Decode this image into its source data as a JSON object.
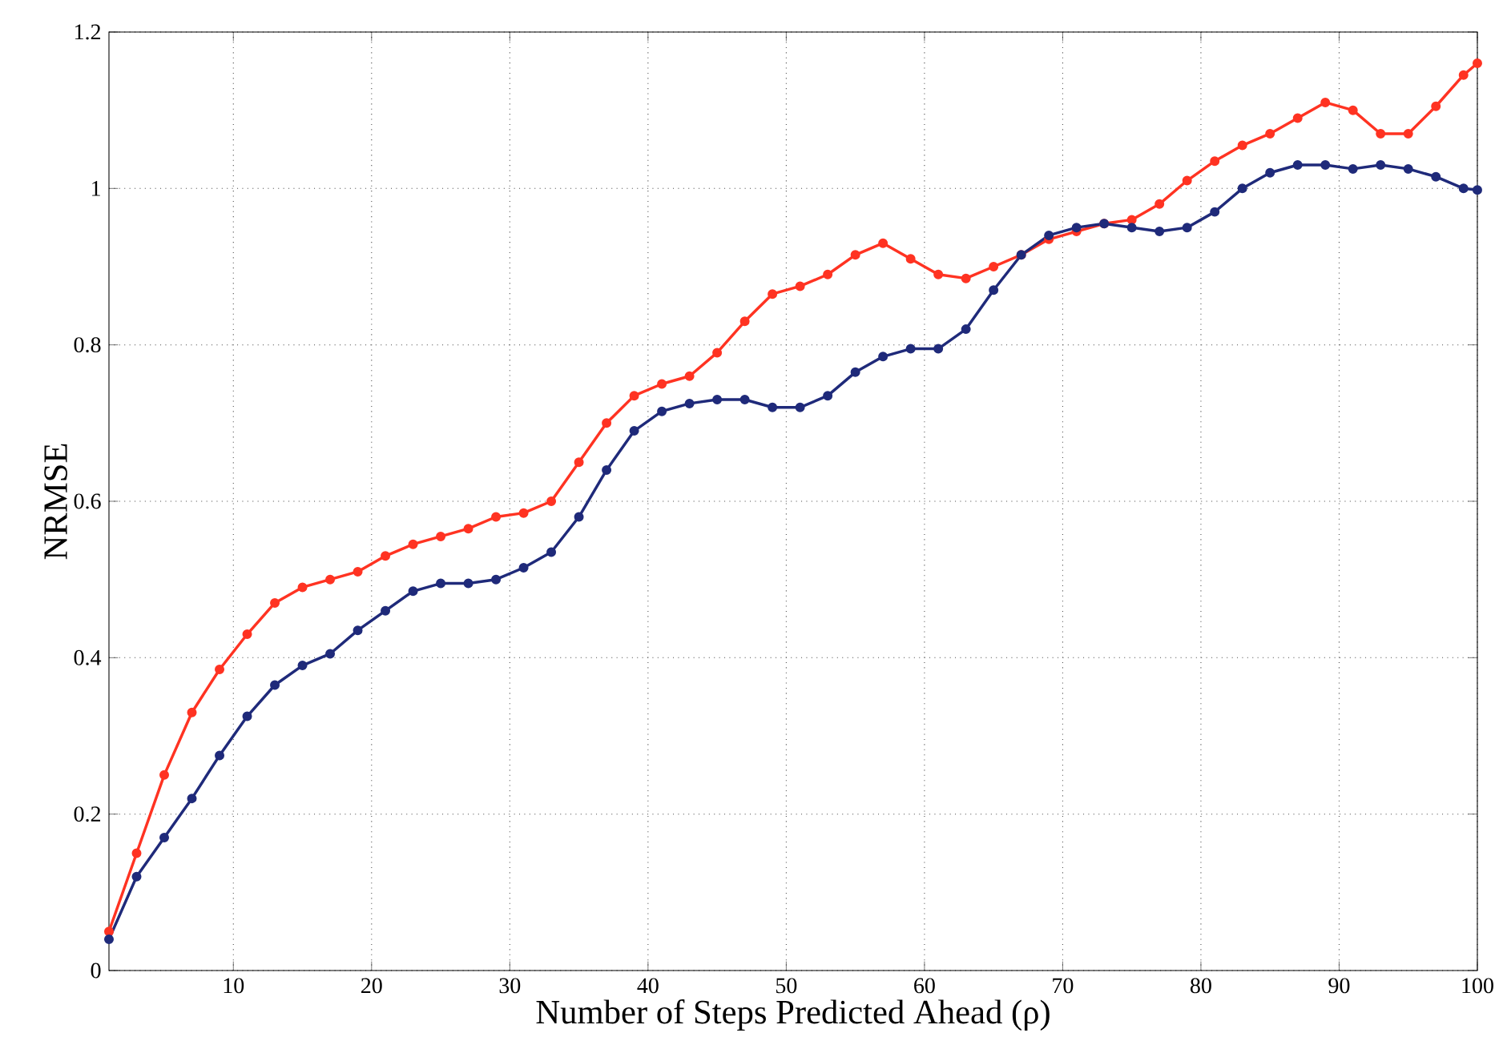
{
  "chart_data": {
    "type": "line",
    "xlabel": "Number of Steps Predicted Ahead (ρ)",
    "ylabel": "NRMSE",
    "xlim": [
      1,
      100
    ],
    "ylim": [
      0,
      1.2
    ],
    "xticks": [
      10,
      20,
      30,
      40,
      50,
      60,
      70,
      80,
      90,
      100
    ],
    "yticks": [
      0,
      0.2,
      0.4,
      0.6,
      0.8,
      1,
      1.2
    ],
    "grid": true,
    "marker": "circle",
    "line_style": "solid",
    "series": [
      {
        "color": "#ff3322",
        "x": [
          1,
          3,
          5,
          7,
          9,
          11,
          13,
          15,
          17,
          19,
          21,
          23,
          25,
          27,
          29,
          31,
          33,
          35,
          37,
          39,
          41,
          43,
          45,
          47,
          49,
          51,
          53,
          55,
          57,
          59,
          61,
          63,
          65,
          67,
          69,
          71,
          73,
          75,
          77,
          79,
          81,
          83,
          85,
          87,
          89,
          91,
          93,
          95,
          97,
          99,
          100
        ],
        "values": [
          0.05,
          0.15,
          0.25,
          0.33,
          0.385,
          0.43,
          0.47,
          0.49,
          0.5,
          0.51,
          0.53,
          0.545,
          0.555,
          0.565,
          0.58,
          0.585,
          0.6,
          0.65,
          0.7,
          0.735,
          0.75,
          0.76,
          0.79,
          0.83,
          0.865,
          0.875,
          0.89,
          0.915,
          0.93,
          0.91,
          0.89,
          0.885,
          0.9,
          0.915,
          0.935,
          0.945,
          0.955,
          0.96,
          0.98,
          1.01,
          1.035,
          1.055,
          1.07,
          1.09,
          1.11,
          1.1,
          1.07,
          1.07,
          1.105,
          1.145,
          1.16
        ]
      },
      {
        "color": "#1f2a7a",
        "x": [
          1,
          3,
          5,
          7,
          9,
          11,
          13,
          15,
          17,
          19,
          21,
          23,
          25,
          27,
          29,
          31,
          33,
          35,
          37,
          39,
          41,
          43,
          45,
          47,
          49,
          51,
          53,
          55,
          57,
          59,
          61,
          63,
          65,
          67,
          69,
          71,
          73,
          75,
          77,
          79,
          81,
          83,
          85,
          87,
          89,
          91,
          93,
          95,
          97,
          99,
          100
        ],
        "values": [
          0.04,
          0.12,
          0.17,
          0.22,
          0.275,
          0.325,
          0.365,
          0.39,
          0.405,
          0.435,
          0.46,
          0.485,
          0.495,
          0.495,
          0.5,
          0.515,
          0.535,
          0.58,
          0.64,
          0.69,
          0.715,
          0.725,
          0.73,
          0.73,
          0.72,
          0.72,
          0.735,
          0.765,
          0.785,
          0.795,
          0.795,
          0.82,
          0.87,
          0.915,
          0.94,
          0.95,
          0.955,
          0.95,
          0.945,
          0.95,
          0.97,
          1.0,
          1.02,
          1.03,
          1.03,
          1.025,
          1.03,
          1.025,
          1.015,
          1.0,
          0.998
        ]
      }
    ]
  }
}
